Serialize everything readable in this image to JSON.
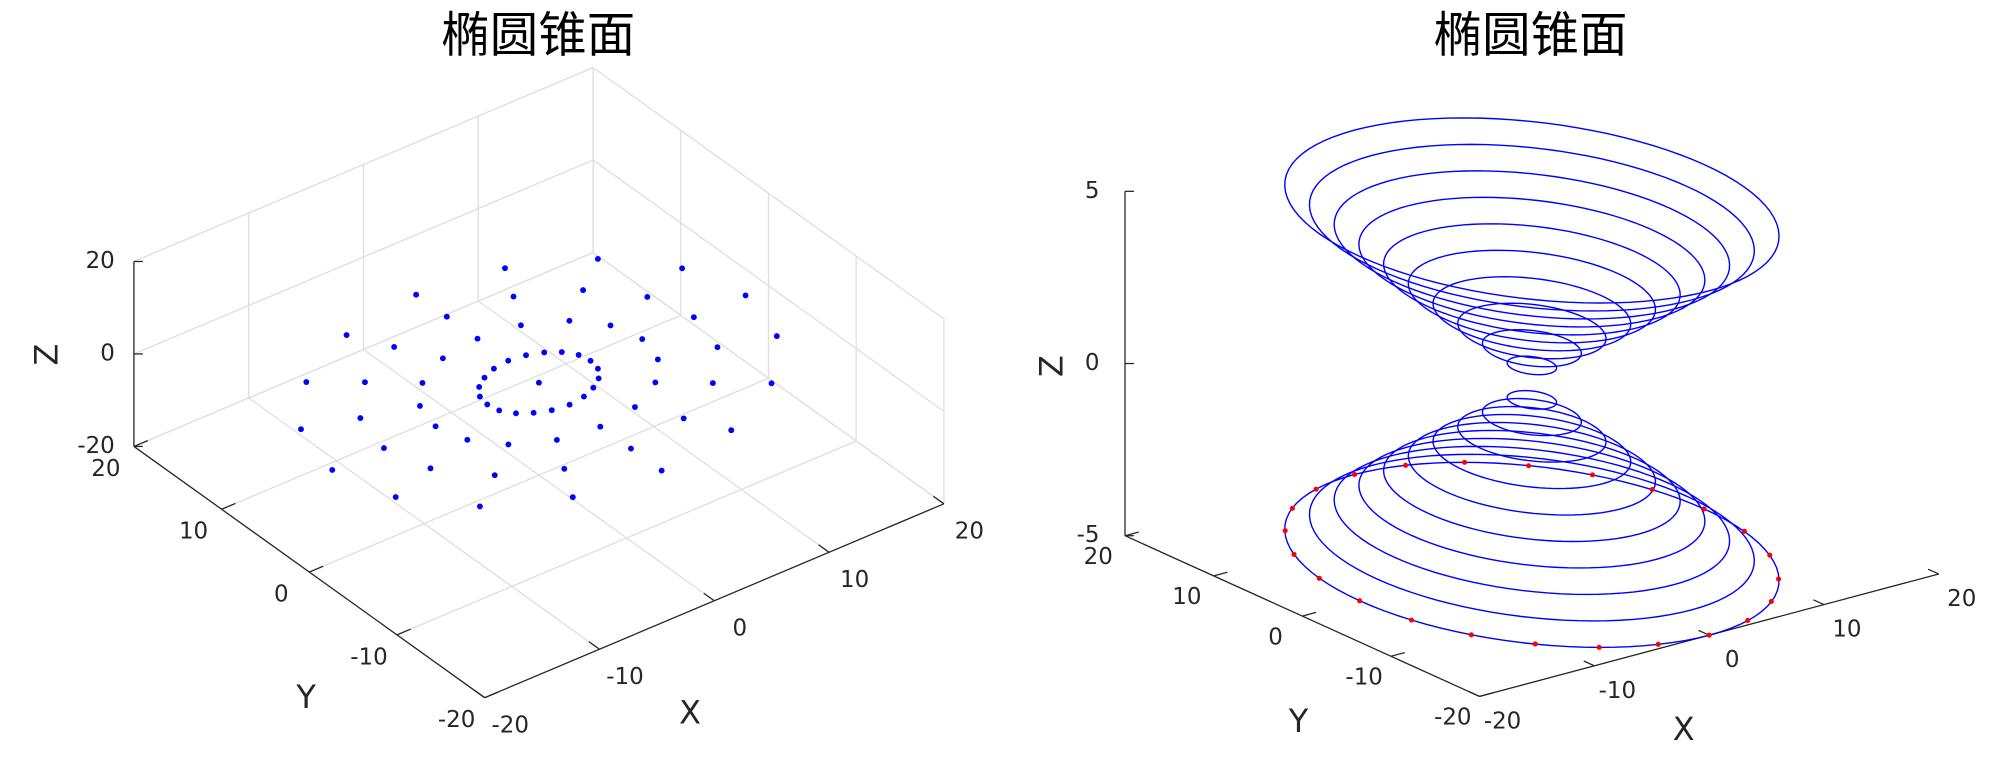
{
  "chart_data": [
    {
      "type": "scatter3d",
      "title": "椭圆锥面",
      "xlabel": "X",
      "ylabel": "Y",
      "zlabel": "Z",
      "xlim": [
        -20,
        20
      ],
      "ylim": [
        -20,
        20
      ],
      "zlim": [
        -20,
        20
      ],
      "xticks": [
        -20,
        -10,
        0,
        10,
        20
      ],
      "yticks": [
        -20,
        -10,
        0,
        10,
        20
      ],
      "zticks": [
        -20,
        0,
        20
      ],
      "grid": true,
      "color": "#0000ff",
      "x": [
        0,
        4.5,
        4.3,
        3.6,
        2.6,
        1.4,
        0,
        -1.4,
        -2.6,
        -3.6,
        -4.3,
        -4.5,
        -4.3,
        -3.6,
        -2.6,
        -1.4,
        0,
        1.4,
        2.6,
        3.6,
        4.3,
        9,
        8.3,
        6.4,
        3.4,
        0,
        -3.4,
        -6.4,
        -8.3,
        -9,
        -8.3,
        -6.4,
        -3.4,
        0,
        3.4,
        6.4,
        8.3,
        13.5,
        12.5,
        9.5,
        5.2,
        0,
        -5.2,
        -9.5,
        -12.5,
        -13.5,
        -12.5,
        -9.5,
        -5.2,
        0,
        5.2,
        9.5,
        12.5,
        18,
        16.6,
        12.7,
        6.9,
        0,
        -6.9,
        -12.7,
        -16.6,
        -18,
        -16.6,
        -12.7,
        -6.9,
        0,
        6.9,
        12.7,
        16.6
      ],
      "y": [
        0,
        0,
        1.1,
        2.1,
        2.8,
        3.3,
        3.5,
        3.3,
        2.8,
        2.1,
        1.1,
        0,
        -1.1,
        -2.1,
        -2.8,
        -3.3,
        -3.5,
        -3.3,
        -2.8,
        -2.1,
        -1.1,
        0,
        2.7,
        4.9,
        6.5,
        7,
        6.5,
        4.9,
        2.7,
        0,
        -2.7,
        -4.9,
        -6.5,
        -7,
        -6.5,
        -4.9,
        -2.7,
        0,
        4,
        7.4,
        9.7,
        10.5,
        9.7,
        7.4,
        4,
        0,
        -4,
        -7.4,
        -9.7,
        -10.5,
        -9.7,
        -7.4,
        -4,
        0,
        5.4,
        9.9,
        12.9,
        14,
        12.9,
        9.9,
        5.4,
        0,
        -5.4,
        -9.9,
        -12.9,
        -14,
        -12.9,
        -9.9,
        -5.4
      ],
      "z": [
        0,
        0,
        0,
        0,
        0,
        0,
        0,
        0,
        0,
        0,
        0,
        0,
        0,
        0,
        0,
        0,
        0,
        0,
        0,
        0,
        0,
        0,
        0,
        0,
        0,
        0,
        0,
        0,
        0,
        0,
        0,
        0,
        0,
        0,
        0,
        0,
        0,
        0,
        0,
        0,
        0,
        0,
        0,
        0,
        0,
        0,
        0,
        0,
        0,
        0,
        0,
        0,
        0,
        0,
        0,
        0,
        0,
        0,
        0,
        0,
        0,
        0,
        0,
        0,
        0,
        0,
        0,
        0,
        0
      ]
    },
    {
      "type": "line3d",
      "title": "椭圆锥面",
      "xlabel": "X",
      "ylabel": "Y",
      "zlabel": "Z",
      "xlim": [
        -20,
        20
      ],
      "ylim": [
        -20,
        20
      ],
      "zlim": [
        -5,
        5
      ],
      "xticks": [
        -20,
        -10,
        0,
        10,
        20
      ],
      "yticks": [
        -20,
        -10,
        0,
        10,
        20
      ],
      "zticks": [
        -5,
        0,
        5
      ],
      "grid": false,
      "color": "#0000ff",
      "rings": {
        "z": [
          -5,
          -4.5,
          -4,
          -3.5,
          -3,
          -2.5,
          -2,
          -1.5,
          -1,
          -0.5,
          0.5,
          1,
          1.5,
          2,
          2.5,
          3,
          3.5,
          4,
          4.5,
          5
        ],
        "a": [
          15,
          13.5,
          12,
          10.5,
          9,
          7.5,
          6,
          4.5,
          3,
          1.5,
          1.5,
          3,
          4.5,
          6,
          7.5,
          9,
          10.5,
          12,
          13.5,
          15
        ],
        "b": [
          20,
          18,
          16,
          14,
          12,
          10,
          8,
          6,
          4,
          2,
          2,
          4,
          6,
          8,
          10,
          12,
          14,
          16,
          18,
          20
        ]
      },
      "markers": {
        "color": "#ff0000",
        "x": [
          15,
          14.5,
          13,
          10.6,
          7.5,
          3.9,
          0,
          -3.9,
          -7.5,
          -10.6,
          -13,
          -14.5,
          -15,
          -14.5,
          -13,
          -10.6,
          -7.5,
          -3.9,
          0,
          3.9,
          7.5,
          10.6,
          13,
          14.5
        ],
        "y": [
          0,
          5.2,
          10,
          14.1,
          17.3,
          19.3,
          20,
          19.3,
          17.3,
          14.1,
          10,
          5.2,
          0,
          -5.2,
          -10,
          -14.1,
          -17.3,
          -19.3,
          -20,
          -19.3,
          -17.3,
          -14.1,
          -10,
          -5.2
        ],
        "z": [
          -5,
          -5,
          -5,
          -5,
          -5,
          -5,
          -5,
          -5,
          -5,
          -5,
          -5,
          -5,
          -5,
          -5,
          -5,
          -5,
          -5,
          -5,
          -5,
          -5,
          -5,
          -5,
          -5,
          -5
        ]
      }
    }
  ]
}
